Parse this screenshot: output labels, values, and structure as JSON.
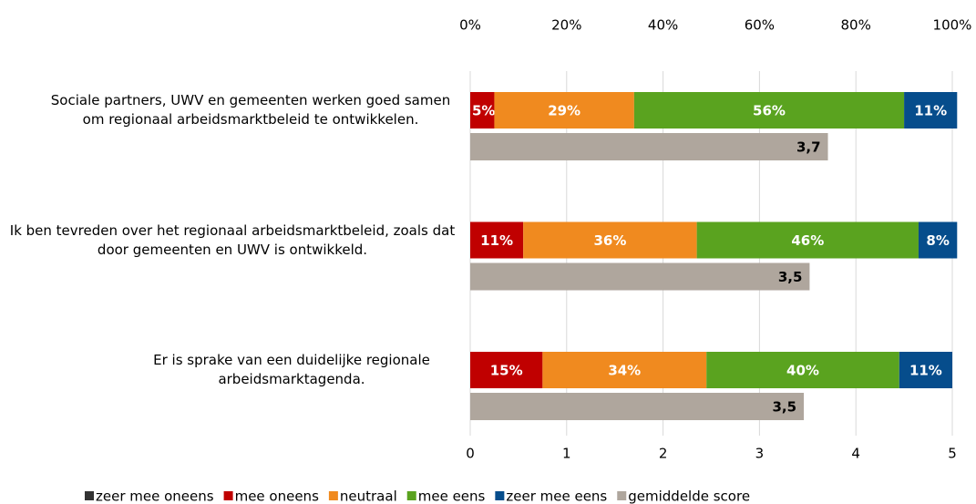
{
  "chart_data": {
    "type": "bar",
    "orientation": "horizontal",
    "stacked": true,
    "categories": [
      "Sociale partners, UWV en gemeenten werken goed samen om regionaal arbeidsmarktbeleid te ontwikkelen.",
      "Ik ben tevreden over het regionaal arbeidsmarktbeleid, zoals dat door gemeenten en UWV is ontwikkeld.",
      "Er is sprake van een duidelijke regionale arbeidsmarktagenda."
    ],
    "xlim": [
      0,
      100
    ],
    "xticks": [
      {
        "value": 0,
        "label": "0%"
      },
      {
        "value": 20,
        "label": "20%"
      },
      {
        "value": 40,
        "label": "40%"
      },
      {
        "value": 60,
        "label": "60%"
      },
      {
        "value": 80,
        "label": "80%"
      },
      {
        "value": 100,
        "label": "100%"
      }
    ],
    "x2lim": [
      0,
      5
    ],
    "x2ticks": [
      0,
      1,
      2,
      3,
      4,
      5
    ],
    "grid": true,
    "legend": "bottom",
    "series": [
      {
        "name": "zeer mee oneens",
        "color": "#333333",
        "values": [
          0,
          0,
          0
        ]
      },
      {
        "name": "mee oneens",
        "color": "#c00000",
        "values": [
          5,
          11,
          15
        ],
        "value_labels": [
          "5%",
          "11%",
          "15%"
        ]
      },
      {
        "name": "neutraal",
        "color": "#f08a1f",
        "values": [
          29,
          36,
          34
        ],
        "value_labels": [
          "29%",
          "36%",
          "34%"
        ]
      },
      {
        "name": "mee eens",
        "color": "#5aa31f",
        "values": [
          56,
          46,
          40
        ],
        "value_labels": [
          "56%",
          "46%",
          "40%"
        ]
      },
      {
        "name": "zeer mee eens",
        "color": "#064d8c",
        "values": [
          11,
          8,
          11
        ],
        "value_labels": [
          "11%",
          "8%",
          "11%"
        ]
      },
      {
        "name": "gemiddelde score",
        "color": "#afa69d",
        "axis": "x2",
        "values": [
          3.71,
          3.52,
          3.46
        ],
        "value_labels": [
          "3,7",
          "3,5",
          "3,5"
        ]
      }
    ]
  }
}
